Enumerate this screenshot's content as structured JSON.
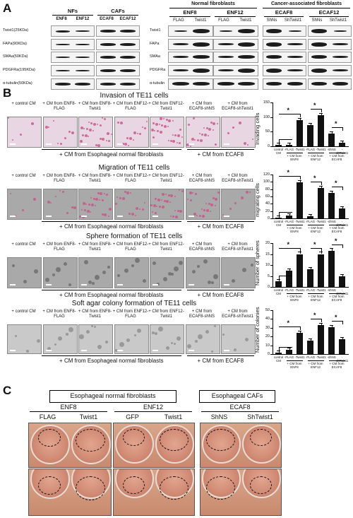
{
  "panel_labels": {
    "a": "A",
    "b": "B",
    "c": "C"
  },
  "panelA": {
    "nfs": "NFs",
    "cafs": "CAFs",
    "left_cols": [
      "ENF8",
      "ENF12",
      "ECAF8",
      "ECAF12"
    ],
    "left_rows": [
      "Twist1(25KDa)",
      "FAPa(90KDa)",
      "SMAa(50KDa)",
      "PDGFRa(195KDa)",
      "α-tubulin(50KDa)"
    ],
    "normal_fibroblasts": "Normal fibroblasts",
    "cancer_fibroblasts": "Cancer-associated fibroblasts",
    "groups": [
      "ENF8",
      "ENF12",
      "ECAF8",
      "ECAF12"
    ],
    "sub_cols": [
      "FLAG",
      "Twist1",
      "FLAG",
      "Twist1",
      "ShNs",
      "ShTwist1",
      "ShNs",
      "ShTwist1"
    ],
    "right_rows": [
      "Twist1",
      "FAPa",
      "SMAa",
      "PDGFRa",
      "α-tubulin"
    ]
  },
  "panelB": {
    "sections": [
      {
        "title": "Invasion of TE11 cells",
        "ylabel": "Invading cells",
        "image_labels": [
          "+ control CM",
          "+ CM from ENF8-FLAG",
          "+ CM from ENF8-Twist1",
          "+ CM from ENF12-FLAG",
          "+ CM from ENF12-Twist1",
          "+ CM from ECAF8-shNS",
          "+ CM from ECAF8-shTwist1"
        ],
        "group_label_nf": "+ CM from Esophageal normal fibroblasts",
        "group_label_caf": "+ CM from ECAF8",
        "chart_x_labels": [
          "control CM",
          "-FLAG",
          "-Twist1",
          "-FLAG",
          "-Twist1",
          "-shNS",
          "-shTwist1"
        ],
        "chart_groups": [
          "+ CM from ENF8",
          "+ CM from ENF12",
          "+ CM from ECAF8"
        ]
      },
      {
        "title": "Migration of TE11 cells",
        "ylabel": "migrating cells",
        "image_labels": [
          "+ control CM",
          "+ CM from ENF8-FLAG",
          "+ CM from ENF8-Twist1",
          "+ CM from ENF12-FLAG",
          "+ CM from ENF12-Twist1",
          "+ CM from ECAF8-shNS",
          "+ CM from ECAF8-shTwist1"
        ],
        "group_label_nf": "+ CM from Esophageal normal fibroblasts",
        "group_label_caf": "+ CM from ECAF8",
        "chart_x_labels": [
          "control CM",
          "-FLAG",
          "-Twist1",
          "-FLAG",
          "-Twist1",
          "-shNS",
          "-shTwist1"
        ],
        "chart_groups": [
          "+ CM from ENF8",
          "+ CM from ENF12",
          "+ CM from ECAF8"
        ]
      },
      {
        "title": "Sphere formation of TE11 cells",
        "ylabel": "Number of spheres",
        "image_labels": [
          "+ control CM",
          "+ CM from ENF8-FLAG",
          "+ CM from ENF8-Twist1",
          "+ CM from ENF12-FLAG",
          "+ CM from ENF12-Twist1",
          "+ CM from ECAF8-shNS",
          "+ CM from ECAF8-shTwist1"
        ],
        "group_label_nf": "+ CM from Esophageal normal fibroblasts",
        "group_label_caf": "+ CM from ECAF8",
        "chart_x_labels": [
          "control CM",
          "-FLAG",
          "-Twist1",
          "-FLAG",
          "-Twist1",
          "-shNS",
          "-shTwist1"
        ],
        "chart_groups": [
          "+ CM from ENF8",
          "+ CM from ENF12",
          "+ CM from ECAF8"
        ]
      },
      {
        "title": "Soft agar colony formation of TE11 cells",
        "ylabel": "Number of colonies",
        "image_labels": [
          "+ control CM",
          "+ CM from ENF8-FLAG",
          "+ CM from ENF8-Twist1",
          "+ CM from ENF12-FLAG",
          "+ CM from ENF12-Twist1",
          "+ CM from ECAF8-shNS",
          "+ CM from ECAF8-shTwist1"
        ],
        "group_label_nf": "+ CM from Esophageal normal fibroblasts",
        "group_label_caf": "+ CM from ECAF8",
        "chart_x_labels": [
          "control CM",
          "-FLAG",
          "-Twist1",
          "-FLAG",
          "-Twist1",
          "-shNS",
          "-shTwist1"
        ],
        "chart_groups": [
          "+ CM from ENF8",
          "+ CM from ENF12",
          "+ CM from ECAF8"
        ]
      }
    ]
  },
  "panelC": {
    "box_left": "Esophageal normal fibroblasts",
    "box_right": "Esophageal CAFs",
    "groups": [
      "ENF8",
      "ENF12",
      "ECAF8"
    ],
    "cols": [
      "FLAG",
      "Twist1",
      "GFP",
      "Twist1",
      "ShNS",
      "ShTwist1"
    ]
  },
  "chart_data": [
    {
      "type": "bar",
      "categories": [
        "control CM",
        "ENF8-FLAG",
        "ENF8-Twist1",
        "ENF12-FLAG",
        "ENF12-Twist1",
        "ECAF8-shNS",
        "ECAF8-shTwist1"
      ],
      "values": [
        4,
        6,
        90,
        72,
        106,
        44,
        11
      ],
      "ylim": [
        0,
        150
      ],
      "yticks": [
        0,
        50,
        100,
        150
      ],
      "ylabel": "Invading cells",
      "significance": "*"
    },
    {
      "type": "bar",
      "categories": [
        "control CM",
        "ENF8-FLAG",
        "ENF8-Twist1",
        "ENF12-FLAG",
        "ENF12-Twist1",
        "ECAF8-shNS",
        "ECAF8-shTwist1"
      ],
      "values": [
        2,
        8,
        98,
        6,
        84,
        70,
        28
      ],
      "ylim": [
        0,
        120
      ],
      "yticks": [
        0,
        20,
        40,
        60,
        80,
        100,
        120
      ],
      "ylabel": "migrating cells",
      "significance": "*"
    },
    {
      "type": "bar",
      "categories": [
        "control CM",
        "ENF8-FLAG",
        "ENF8-Twist1",
        "ENF12-FLAG",
        "ENF12-Twist1",
        "ECAF8-shNS",
        "ECAF8-shTwist1"
      ],
      "values": [
        2.5,
        7.5,
        15,
        8,
        15,
        16.5,
        5
      ],
      "ylim": [
        0,
        20
      ],
      "yticks": [
        0,
        5,
        10,
        15,
        20
      ],
      "ylabel": "Number of spheres",
      "significance": "*"
    },
    {
      "type": "bar",
      "categories": [
        "control CM",
        "ENF8-FLAG",
        "ENF8-Twist1",
        "ENF12-FLAG",
        "ENF12-Twist1",
        "ECAF8-shNS",
        "ECAF8-shTwist1"
      ],
      "values": [
        2,
        5,
        24,
        15,
        33,
        31,
        17
      ],
      "ylim": [
        0,
        50
      ],
      "yticks": [
        0,
        10,
        20,
        30,
        40,
        50
      ],
      "ylabel": "Number of colonies",
      "significance": "*"
    }
  ]
}
